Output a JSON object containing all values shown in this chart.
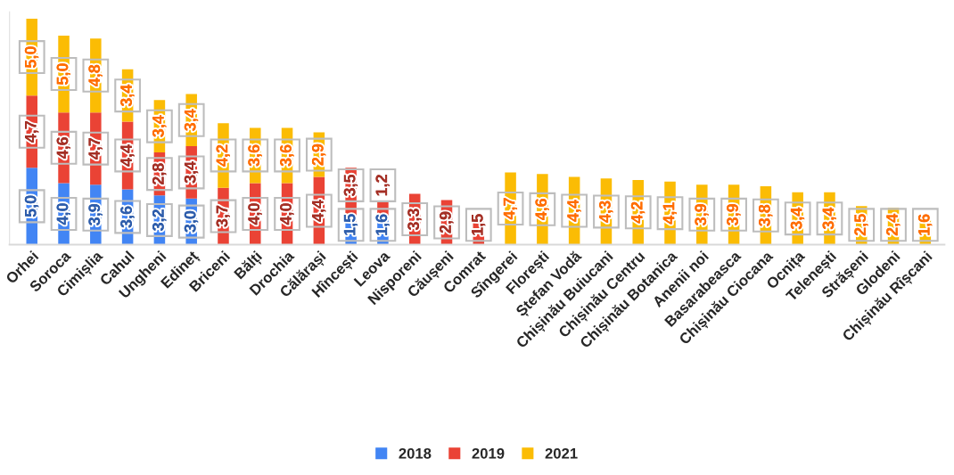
{
  "chart_data": {
    "type": "bar",
    "stacked": true,
    "tick_labels": "x",
    "grid": false,
    "legend": "bottom",
    "categories": [
      "Orhei",
      "Soroca",
      "Cimișlia",
      "Cahul",
      "Ungheni",
      "Edineț",
      "Briceni",
      "Bălți",
      "Drochia",
      "Călărași",
      "Hîncești",
      "Leova",
      "Nisporeni",
      "Căușeni",
      "Comrat",
      "Sîngerei",
      "Florești",
      "Ștefan Vodă",
      "Chișinău Buiucani",
      "Chișinău Centru",
      "Chișinău Botanica",
      "Anenii noi",
      "Basarabeasca",
      "Chișinău Ciocana",
      "Ocnița",
      "Telenești",
      "Strășeni",
      "Glodeni",
      "Chișinău Rîșcani"
    ],
    "series": [
      {
        "name": "2018",
        "color": "#4285f4",
        "values": [
          5.0,
          4.0,
          3.9,
          3.6,
          3.2,
          3.0,
          null,
          null,
          null,
          null,
          1.5,
          1.6,
          null,
          null,
          null,
          null,
          null,
          null,
          null,
          null,
          null,
          null,
          null,
          null,
          null,
          null,
          null,
          null,
          null
        ],
        "value_labels": [
          "5,0",
          "4,0",
          "3,9",
          "3,6",
          "3,2",
          "3,0",
          null,
          null,
          null,
          null,
          "1,5",
          "1,6",
          null,
          null,
          null,
          null,
          null,
          null,
          null,
          null,
          null,
          null,
          null,
          null,
          null,
          null,
          null,
          null,
          null
        ]
      },
      {
        "name": "2019",
        "color": "#ea4335",
        "values": [
          4.7,
          4.6,
          4.7,
          4.4,
          2.8,
          3.4,
          3.7,
          4.0,
          4.0,
          4.4,
          3.5,
          1.2,
          3.3,
          2.9,
          1.5,
          null,
          null,
          null,
          null,
          null,
          null,
          null,
          null,
          null,
          null,
          null,
          null,
          null,
          null
        ],
        "value_labels": [
          "4,7",
          "4,6",
          "4,7",
          "4,4",
          "2,8",
          "3,4",
          "3,7",
          "4,0",
          "4,0",
          "4,4",
          "3,5",
          "1,2",
          "3,3",
          "2,9",
          "1,5",
          null,
          null,
          null,
          null,
          null,
          null,
          null,
          null,
          null,
          null,
          null,
          null,
          null,
          null
        ]
      },
      {
        "name": "2021",
        "color": "#fbbc04",
        "values": [
          5.0,
          5.0,
          4.8,
          3.4,
          3.4,
          3.4,
          4.2,
          3.6,
          3.6,
          2.9,
          null,
          null,
          null,
          null,
          null,
          4.7,
          4.6,
          4.4,
          4.3,
          4.2,
          4.1,
          3.9,
          3.9,
          3.8,
          3.4,
          3.4,
          2.5,
          2.4,
          1.6
        ],
        "value_labels": [
          "5,0",
          "5,0",
          "4,8",
          "3,4",
          "3,4",
          "3,4",
          "4,2",
          "3,6",
          "3,6",
          "2,9",
          null,
          null,
          null,
          null,
          null,
          "4,7",
          "4,6",
          "4,4",
          "4,3",
          "4,2",
          "4,1",
          "3,9",
          "3,9",
          "3,8",
          "3,4",
          "3,4",
          "2,5",
          "2,4",
          "1,6"
        ]
      }
    ]
  }
}
